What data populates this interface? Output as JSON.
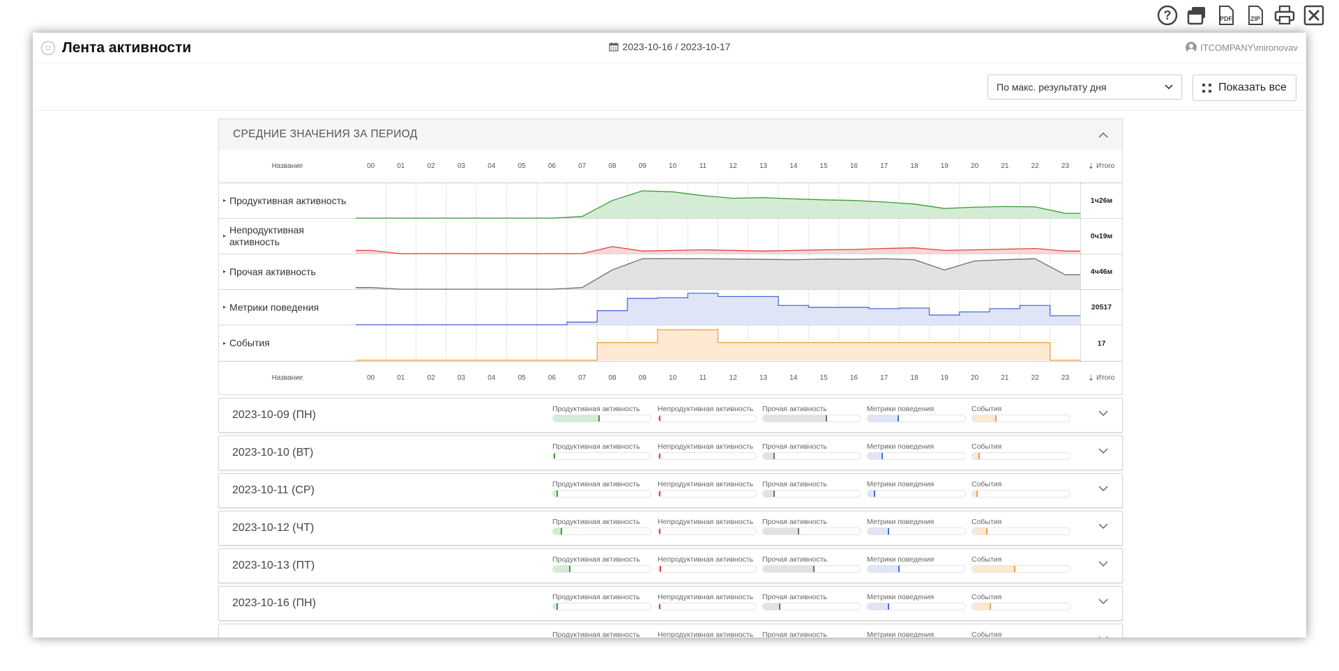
{
  "toolbar": {
    "icons": [
      "help-icon",
      "window-icon",
      "pdf-icon",
      "zip-icon",
      "print-icon",
      "close-icon"
    ],
    "pdf_label": "PDF",
    "zip_label": "ZIP"
  },
  "header": {
    "title": "Лента активности",
    "date_range": "2023-10-16 / 2023-10-17",
    "user": "ITCOMPANY\\mironovav"
  },
  "controls": {
    "sort_value": "По макс. результату дня",
    "show_all_label": "Показать все"
  },
  "summary": {
    "title": "СРЕДНИЕ ЗНАЧЕНИЯ ЗА ПЕРИОД",
    "name_col": "Название",
    "total_col": "Итого",
    "hours": [
      "00",
      "01",
      "02",
      "03",
      "04",
      "05",
      "06",
      "07",
      "08",
      "09",
      "10",
      "11",
      "12",
      "13",
      "14",
      "15",
      "16",
      "17",
      "18",
      "19",
      "20",
      "21",
      "22",
      "23"
    ],
    "metrics": [
      {
        "name": "Продуктивная активность",
        "total": "1ч26м",
        "color": "#3a9a3a",
        "fill": "#d4ecd4"
      },
      {
        "name": "Непродуктивная активность",
        "total": "0ч19м",
        "color": "#e04040",
        "fill": "#f7d6d6"
      },
      {
        "name": "Прочая активность",
        "total": "4ч46м",
        "color": "#707070",
        "fill": "#e2e2e2"
      },
      {
        "name": "Метрики поведения",
        "total": "20517",
        "color": "#4a6bd8",
        "fill": "#dfe4f7"
      },
      {
        "name": "События",
        "total": "17",
        "color": "#f0a040",
        "fill": "#fde8d2"
      }
    ]
  },
  "chart_data": {
    "type": "area",
    "x": [
      "00",
      "01",
      "02",
      "03",
      "04",
      "05",
      "06",
      "07",
      "08",
      "09",
      "10",
      "11",
      "12",
      "13",
      "14",
      "15",
      "16",
      "17",
      "18",
      "19",
      "20",
      "21",
      "22",
      "23"
    ],
    "series": [
      {
        "name": "Продуктивная активность",
        "values": [
          0,
          0,
          0,
          0,
          0,
          0,
          0,
          0.05,
          0.55,
          0.85,
          0.82,
          0.7,
          0.62,
          0.64,
          0.6,
          0.57,
          0.55,
          0.5,
          0.44,
          0.3,
          0.34,
          0.36,
          0.35,
          0.15
        ]
      },
      {
        "name": "Непродуктивная активность",
        "values": [
          0.1,
          0,
          0,
          0,
          0,
          0,
          0,
          0,
          0.22,
          0.08,
          0.1,
          0.12,
          0.1,
          0.08,
          0.1,
          0.12,
          0.13,
          0.16,
          0.18,
          0.1,
          0.12,
          0.14,
          0.16,
          0.08
        ]
      },
      {
        "name": "Прочая активность",
        "values": [
          0.05,
          0,
          0,
          0,
          0,
          0,
          0,
          0.05,
          0.6,
          0.95,
          0.95,
          0.95,
          0.94,
          0.93,
          0.92,
          0.94,
          0.93,
          0.95,
          0.92,
          0.6,
          0.88,
          0.92,
          0.95,
          0.45
        ]
      },
      {
        "name": "Метрики поведения",
        "values": [
          0,
          0,
          0,
          0,
          0,
          0,
          0,
          0.08,
          0.44,
          0.82,
          0.84,
          0.98,
          0.88,
          0.88,
          0.6,
          0.54,
          0.54,
          0.5,
          0.52,
          0.3,
          0.4,
          0.5,
          0.6,
          0.28
        ]
      },
      {
        "name": "События",
        "values": [
          0,
          0,
          0,
          0,
          0,
          0,
          0,
          0,
          0.55,
          0.55,
          0.95,
          0.95,
          0.55,
          0.55,
          0.55,
          0.55,
          0.55,
          0.55,
          0.55,
          0.55,
          0.55,
          0.55,
          0.55,
          0
        ]
      }
    ]
  },
  "days": [
    {
      "label": "2023-10-09 (ПН)",
      "bars": [
        0.48,
        0.02,
        0.66,
        0.32,
        0.25
      ]
    },
    {
      "label": "2023-10-10 (ВТ)",
      "bars": [
        0.02,
        0.02,
        0.12,
        0.16,
        0.08
      ]
    },
    {
      "label": "2023-10-11 (СР)",
      "bars": [
        0.05,
        0.02,
        0.12,
        0.08,
        0.06
      ]
    },
    {
      "label": "2023-10-12 (ЧТ)",
      "bars": [
        0.09,
        0.02,
        0.37,
        0.22,
        0.16
      ]
    },
    {
      "label": "2023-10-13 (ПТ)",
      "bars": [
        0.18,
        0.03,
        0.53,
        0.33,
        0.44
      ]
    },
    {
      "label": "2023-10-16 (ПН)",
      "bars": [
        0.05,
        0.02,
        0.18,
        0.22,
        0.19
      ]
    },
    {
      "label": "",
      "bars": [
        0.0,
        0.0,
        0.0,
        0.0,
        0.0
      ]
    }
  ],
  "mini_labels": [
    "Продуктивная активность",
    "Непродуктивная активность",
    "Прочая активность",
    "Метрики поведения",
    "События"
  ]
}
